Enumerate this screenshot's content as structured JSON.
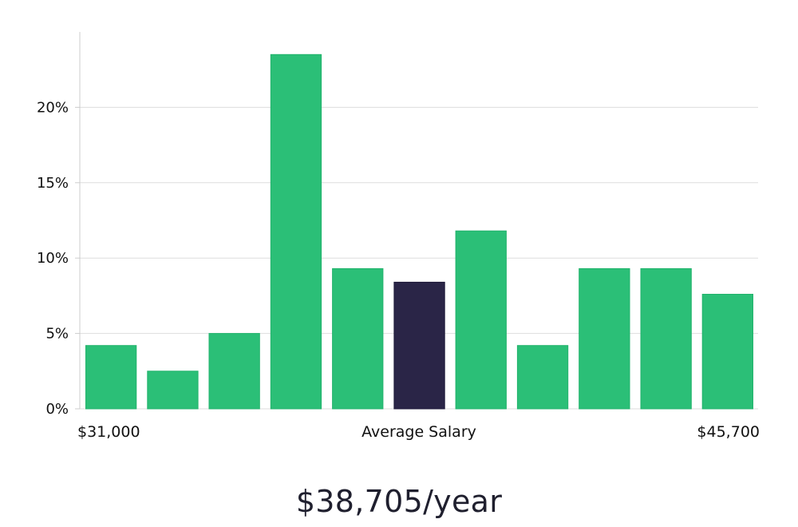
{
  "summary": "$38,705/year",
  "colors": {
    "bar": "#2bbf77",
    "highlight": "#2a2547",
    "grid": "#dddddd",
    "axis": "#cccccc",
    "text": "#111111"
  },
  "chart_data": {
    "type": "bar",
    "categories": [
      "1",
      "2",
      "3",
      "4",
      "5",
      "6",
      "7",
      "8",
      "9",
      "10",
      "11"
    ],
    "values": [
      4.2,
      2.5,
      5.0,
      23.5,
      9.3,
      8.4,
      11.8,
      4.2,
      9.3,
      9.3,
      7.6
    ],
    "highlight_index": 5,
    "ylim": [
      0,
      25
    ],
    "y_ticks": [
      0,
      5,
      10,
      15,
      20
    ],
    "y_tick_format": "%",
    "x_labels": {
      "left": "$31,000",
      "center": "Average Salary",
      "right": "$45,700"
    },
    "grid": true
  }
}
